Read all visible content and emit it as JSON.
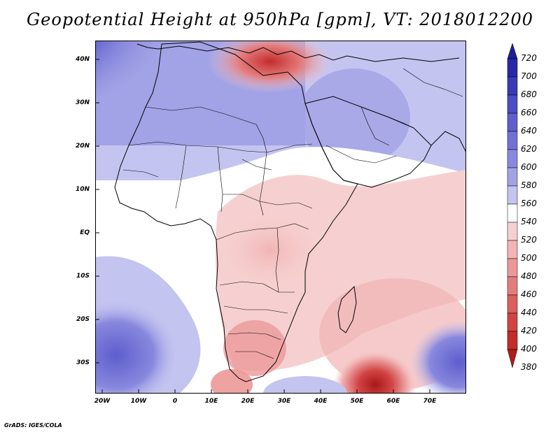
{
  "title": "Geopotential Height at 950hPa [gpm], VT: 2018012200",
  "credit": "GrADS: IGES/COLA",
  "lat_labels": [
    "40N",
    "30N",
    "20N",
    "10N",
    "EQ",
    "10S",
    "20S",
    "30S"
  ],
  "lon_labels": [
    "20W",
    "10W",
    "0",
    "10E",
    "20E",
    "30E",
    "40E",
    "50E",
    "60E",
    "70E"
  ],
  "colorbar": {
    "levels": [
      "720",
      "700",
      "680",
      "660",
      "640",
      "620",
      "600",
      "580",
      "560",
      "540",
      "520",
      "500",
      "480",
      "460",
      "440",
      "420",
      "400",
      "380"
    ],
    "colors": [
      "#1e1e96",
      "#2828aa",
      "#3a3ab8",
      "#4c4cc4",
      "#5e5ece",
      "#7272d6",
      "#8888de",
      "#a2a2e6",
      "#c4c4f0",
      "#ffffff",
      "#f6d0d0",
      "#f2b4b4",
      "#ec9898",
      "#e47c7c",
      "#dc5e5e",
      "#d24444",
      "#c42c2c",
      "#b01c1c"
    ]
  },
  "map": {
    "region": "Africa",
    "variable": "Geopotential Height",
    "level": "950hPa",
    "units": "gpm",
    "valid_time": "2018012200"
  }
}
